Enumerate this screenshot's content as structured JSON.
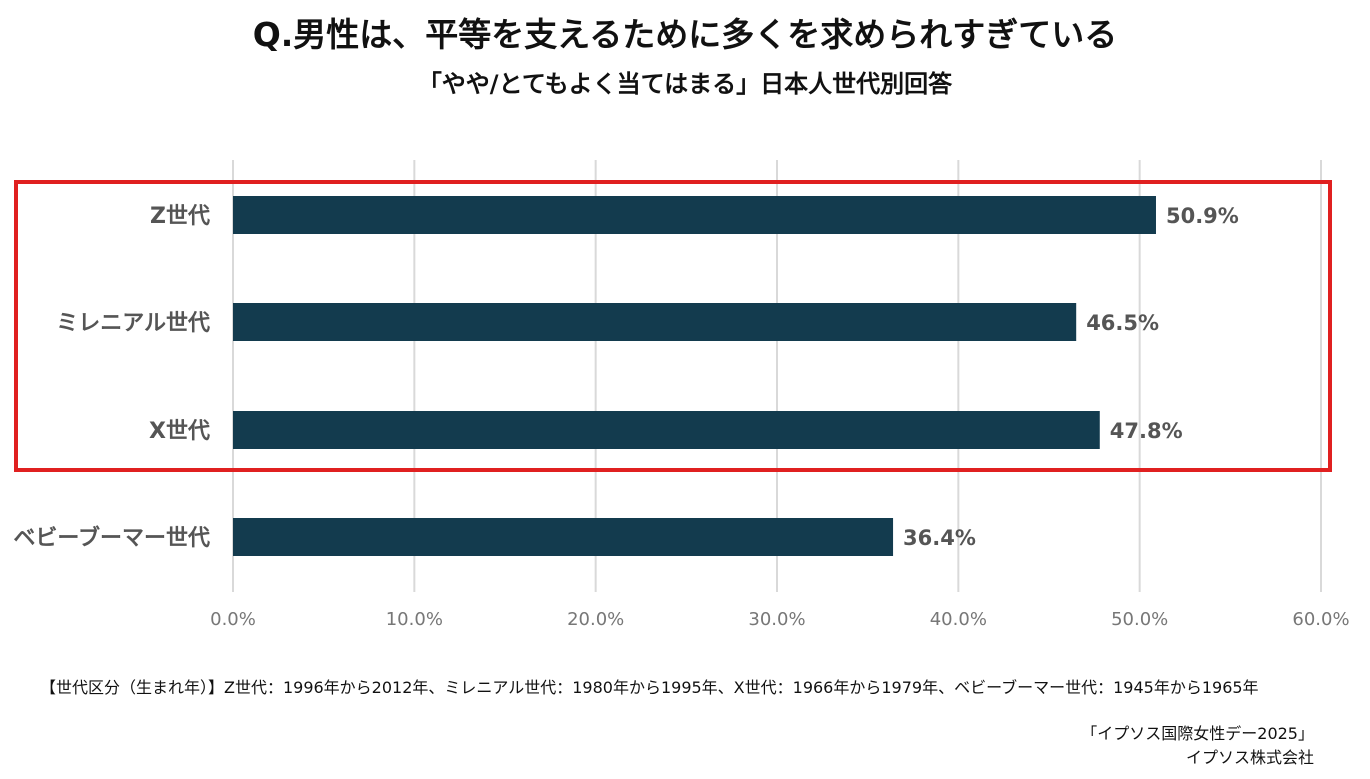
{
  "title": "Q.男性は、平等を支えるために多くを求められすぎている",
  "subtitle": "「やや/とてもよく当てはまる」日本人世代別回答",
  "colors": {
    "bar": "#133b4e",
    "grid": "#d9d9d9",
    "highlight": "#e02020",
    "category_text": "#555555",
    "tick_text": "#777777",
    "label_text": "#555555"
  },
  "chart_data": {
    "type": "bar",
    "orientation": "horizontal",
    "categories": [
      "Z世代",
      "ミレニアル世代",
      "X世代",
      "ベビーブーマー世代"
    ],
    "values": [
      50.9,
      46.5,
      47.8,
      36.4
    ],
    "value_labels": [
      "50.9%",
      "46.5%",
      "47.8%",
      "36.4%"
    ],
    "xlim": [
      0,
      60
    ],
    "xticks": [
      0,
      10,
      20,
      30,
      40,
      50,
      60
    ],
    "xtick_labels": [
      "0.0%",
      "10.0%",
      "20.0%",
      "30.0%",
      "40.0%",
      "50.0%",
      "60.0%"
    ],
    "grid": true,
    "highlighted_categories": [
      "Z世代",
      "ミレニアル世代",
      "X世代"
    ]
  },
  "footnote": "【世代区分（生まれ年）】Z世代：1996年から2012年、ミレニアル世代：1980年から1995年、X世代：1966年から1979年、ベビーブーマー世代：1945年から1965年",
  "credit": {
    "line1": "「イプソス国際女性デー2025」",
    "line2": "イプソス株式会社"
  }
}
